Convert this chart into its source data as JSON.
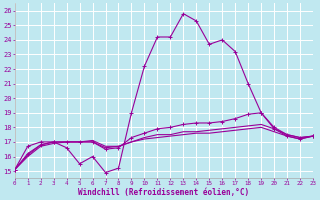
{
  "xlabel": "Windchill (Refroidissement éolien,°C)",
  "background_color": "#c0e8f0",
  "grid_color": "#ffffff",
  "line_color": "#990099",
  "x": [
    0,
    1,
    2,
    3,
    4,
    5,
    6,
    7,
    8,
    9,
    10,
    11,
    12,
    13,
    14,
    15,
    16,
    17,
    18,
    19,
    20,
    21,
    22,
    23
  ],
  "xlim": [
    0,
    23
  ],
  "ylim": [
    14.5,
    26.5
  ],
  "yticks": [
    15,
    16,
    17,
    18,
    19,
    20,
    21,
    22,
    23,
    24,
    25,
    26
  ],
  "curve1": [
    15.1,
    16.7,
    17.0,
    17.0,
    16.6,
    15.5,
    16.0,
    14.9,
    15.2,
    19.0,
    22.2,
    24.2,
    24.2,
    25.8,
    25.3,
    23.7,
    24.0,
    23.2,
    21.0,
    19.0,
    17.9,
    17.4,
    17.2,
    17.4
  ],
  "curve2": [
    15.1,
    16.2,
    16.8,
    17.0,
    17.0,
    17.0,
    17.0,
    16.5,
    16.6,
    17.3,
    17.6,
    17.9,
    18.0,
    18.2,
    18.3,
    18.3,
    18.4,
    18.6,
    18.9,
    19.0,
    18.0,
    17.5,
    17.3,
    17.4
  ],
  "curve3": [
    15.1,
    16.1,
    16.8,
    17.0,
    17.0,
    17.0,
    17.1,
    16.7,
    16.7,
    17.0,
    17.3,
    17.5,
    17.5,
    17.7,
    17.7,
    17.8,
    17.9,
    18.0,
    18.1,
    18.2,
    17.9,
    17.5,
    17.3,
    17.4
  ],
  "curve4": [
    15.1,
    16.0,
    16.7,
    16.9,
    17.0,
    17.0,
    17.0,
    16.6,
    16.7,
    17.0,
    17.2,
    17.3,
    17.4,
    17.5,
    17.6,
    17.6,
    17.7,
    17.8,
    17.9,
    18.0,
    17.7,
    17.4,
    17.2,
    17.4
  ]
}
